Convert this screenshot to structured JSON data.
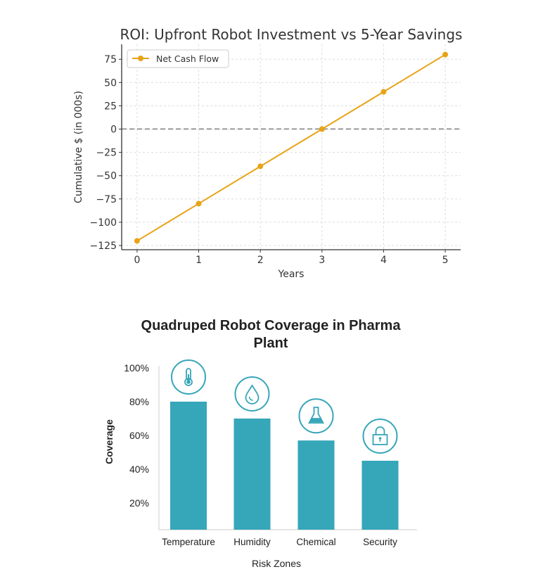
{
  "chart_data": [
    {
      "type": "line",
      "title": "ROI: Upfront Robot Investment vs 5-Year Savings",
      "xlabel": "Years",
      "ylabel": "Cumulative $ (in 000s)",
      "x": [
        0,
        1,
        2,
        3,
        4,
        5
      ],
      "xticks": [
        "0",
        "1",
        "2",
        "3",
        "4",
        "5"
      ],
      "yticks": [
        75,
        50,
        25,
        0,
        -25,
        -50,
        -75,
        -100,
        -125
      ],
      "ytick_labels": [
        "75",
        "50",
        "25",
        "0",
        "−25",
        "−50",
        "−75",
        "−100",
        "−125"
      ],
      "xlim": [
        -0.25,
        5.25
      ],
      "ylim": [
        -129.5,
        91
      ],
      "grid": true,
      "series": [
        {
          "name": "Net Cash Flow",
          "values": [
            -120,
            -80,
            -40,
            0,
            40,
            80
          ],
          "color": "#E8A317"
        }
      ],
      "reference_line": {
        "y": 0,
        "style": "dashed",
        "color": "#888888"
      },
      "legend": "top-left"
    },
    {
      "type": "bar",
      "title": "Quadruped Robot Coverage in Pharma Plant",
      "xlabel": "Risk Zones",
      "ylabel": "Coverage",
      "categories": [
        "Temperature",
        "Humidity",
        "Chemical",
        "Security"
      ],
      "values": [
        80,
        70,
        57,
        45
      ],
      "icons": [
        "thermometer-icon",
        "droplet-icon",
        "flask-icon",
        "padlock-icon"
      ],
      "yticks": [
        100,
        80,
        60,
        40,
        20
      ],
      "ytick_labels": [
        "100%",
        "80%",
        "60%",
        "40%",
        "20%"
      ],
      "ylim": [
        0,
        100
      ],
      "color": "#36A6B9"
    }
  ]
}
